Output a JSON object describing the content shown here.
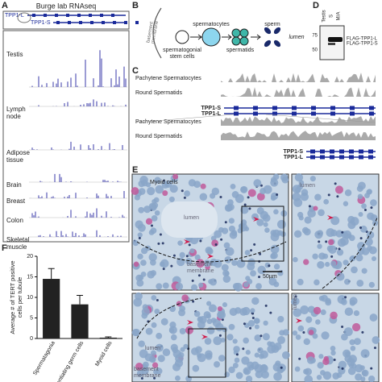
{
  "panel_a": {
    "label": "A",
    "title": "Burge lab RNAseq",
    "tracks": [
      "TPP1-L",
      "TPP1-S"
    ],
    "tissues": [
      [
        "Testis"
      ],
      [
        "Lymph",
        "node"
      ],
      [
        "Adipose",
        "tissue"
      ],
      [
        "Brain"
      ],
      [
        "Breast"
      ],
      [
        "Colon"
      ],
      [
        "Skeletal",
        "muscle"
      ]
    ]
  },
  "panel_b": {
    "label": "B",
    "basement": [
      "basement",
      "membrane"
    ],
    "stem": [
      "spermatogonial",
      "stem cells"
    ],
    "spermatocytes": "spermatocytes",
    "spermatids": "spermatids",
    "sperm": "sperm",
    "lumen": "lumen"
  },
  "panel_c": {
    "label": "C",
    "tracks": [
      "Pachytene Spermatocytes",
      "Round Spermatids"
    ],
    "genes": [
      "TPP1-S",
      "TPP1-L"
    ]
  },
  "panel_d": {
    "label": "D",
    "lanes": [
      "Testis",
      "S",
      "M/A"
    ],
    "markers": [
      "75",
      "50"
    ],
    "bands": [
      "FLAG-TPP1-L",
      "FLAG-TPP1-S"
    ]
  },
  "panel_e": {
    "label": "E",
    "top": [
      "Myoid cells",
      "lumen",
      "basement",
      "membrane",
      "50µm",
      "lumen"
    ],
    "bottom": [
      "lumen",
      "basement",
      "membrane",
      "lumen"
    ]
  },
  "chart_data": {
    "type": "bar",
    "label": "F",
    "ylabel": [
      "Average # of TERT positive",
      "cells per tubule"
    ],
    "categories": [
      "Spermatagonia",
      "Differentiating germ cells",
      "Myoid cells"
    ],
    "values": [
      14.5,
      8.3,
      0.2
    ],
    "errors": [
      2.5,
      2.2,
      0.2
    ],
    "color": "#222222",
    "ylim": [
      0,
      20
    ],
    "yticks": [
      0,
      5,
      10,
      15,
      20
    ]
  }
}
